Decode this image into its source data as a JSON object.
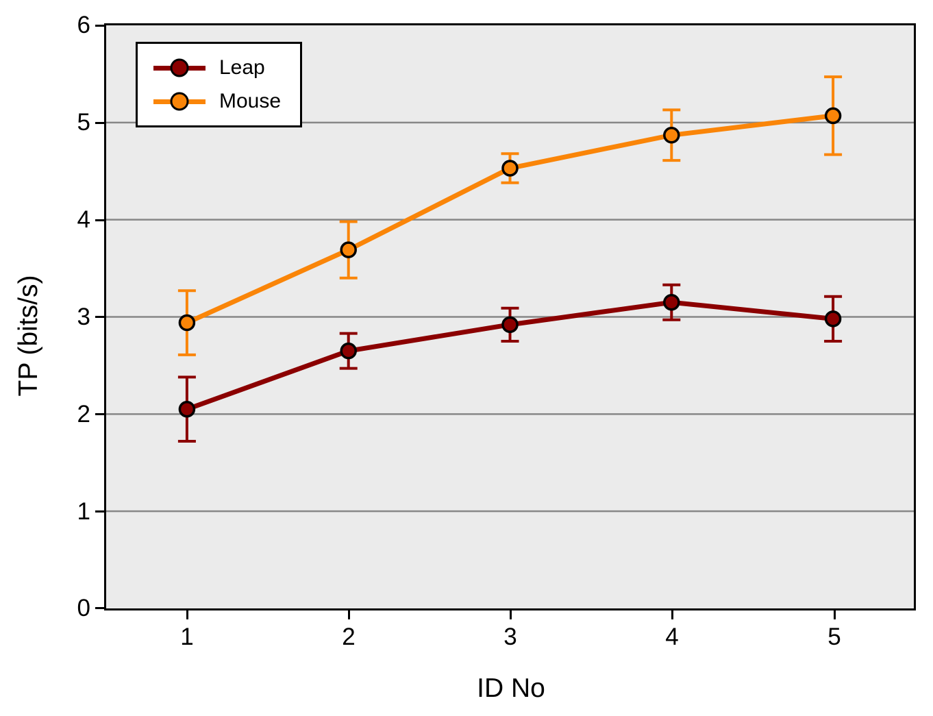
{
  "chart_data": {
    "type": "line",
    "title": "",
    "xlabel": "ID No",
    "ylabel": "TP (bits/s)",
    "xlim": [
      0.5,
      5.5
    ],
    "ylim": [
      0,
      6
    ],
    "xticks": [
      "1",
      "2",
      "3",
      "4",
      "5"
    ],
    "yticks": [
      "0",
      "1",
      "2",
      "3",
      "4",
      "5",
      "6"
    ],
    "grid": "horizontal gridlines at integer y values, on",
    "legend_position": "top-left inside plot",
    "colors": {
      "plot_background": "#ebebeb",
      "gridline": "#878787",
      "axis_frame": "#000000",
      "leap_series": "#8b0000",
      "mouse_series": "#fa8508",
      "marker_edge": "#000000"
    },
    "x": [
      1,
      2,
      3,
      4,
      5
    ],
    "series": [
      {
        "name": "Leap",
        "color": "#8b0000",
        "values": [
          2.05,
          2.65,
          2.92,
          3.15,
          2.98
        ],
        "errors": [
          0.33,
          0.18,
          0.17,
          0.18,
          0.23
        ]
      },
      {
        "name": "Mouse",
        "color": "#fa8508",
        "values": [
          2.94,
          3.69,
          4.53,
          4.87,
          5.07
        ],
        "errors": [
          0.33,
          0.29,
          0.15,
          0.26,
          0.4
        ]
      }
    ]
  }
}
